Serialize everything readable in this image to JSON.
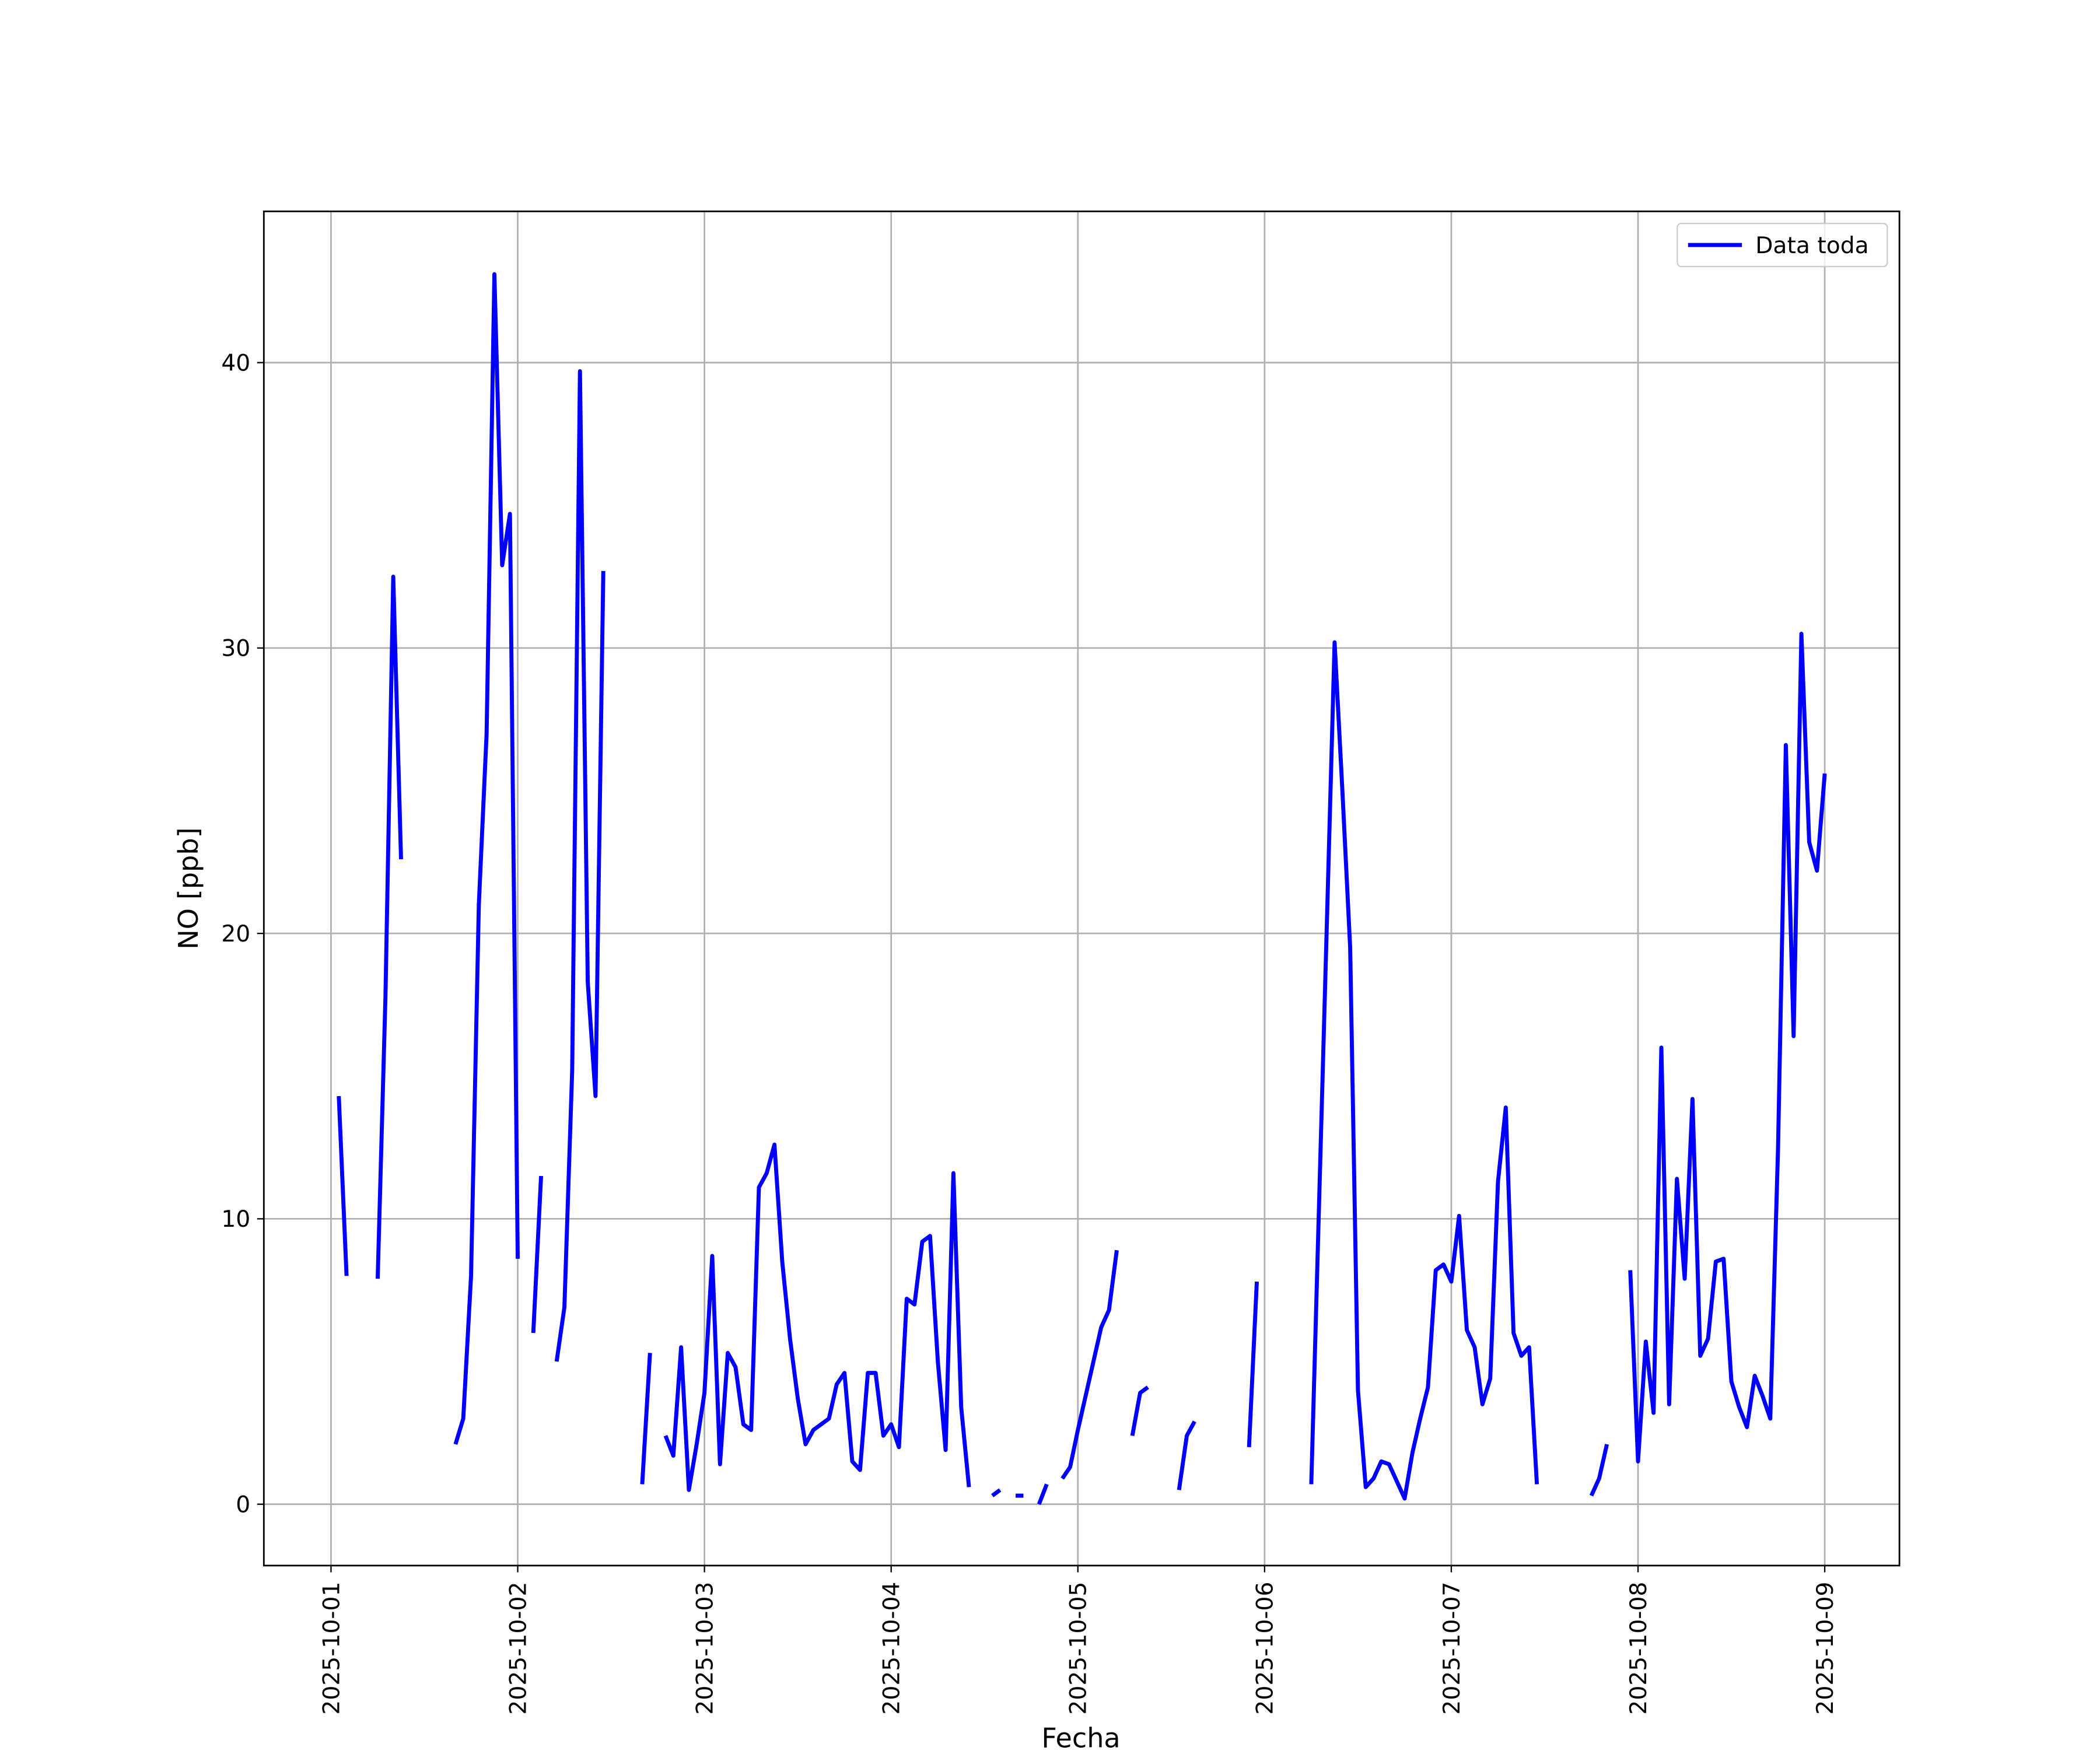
{
  "chart_data": {
    "type": "line",
    "xlabel": "Fecha",
    "ylabel": "NO [ppb]",
    "x": [
      "2025-10-01T00:00",
      "2025-10-01T01:00",
      "2025-10-01T02:00",
      "2025-10-01T03:00",
      "2025-10-01T04:00",
      "2025-10-01T05:00",
      "2025-10-01T06:00",
      "2025-10-01T07:00",
      "2025-10-01T08:00",
      "2025-10-01T09:00",
      "2025-10-01T10:00",
      "2025-10-01T11:00",
      "2025-10-01T12:00",
      "2025-10-01T13:00",
      "2025-10-01T14:00",
      "2025-10-01T15:00",
      "2025-10-01T16:00",
      "2025-10-01T17:00",
      "2025-10-01T18:00",
      "2025-10-01T19:00",
      "2025-10-01T20:00",
      "2025-10-01T21:00",
      "2025-10-01T22:00",
      "2025-10-01T23:00",
      "2025-10-02T00:00",
      "2025-10-02T01:00",
      "2025-10-02T02:00",
      "2025-10-02T03:00",
      "2025-10-02T04:00",
      "2025-10-02T05:00",
      "2025-10-02T06:00",
      "2025-10-02T07:00",
      "2025-10-02T08:00",
      "2025-10-02T09:00",
      "2025-10-02T10:00",
      "2025-10-02T11:00",
      "2025-10-02T12:00",
      "2025-10-02T13:00",
      "2025-10-02T14:00",
      "2025-10-02T15:00",
      "2025-10-02T16:00",
      "2025-10-02T17:00",
      "2025-10-02T18:00",
      "2025-10-02T19:00",
      "2025-10-02T20:00",
      "2025-10-02T21:00",
      "2025-10-02T22:00",
      "2025-10-02T23:00",
      "2025-10-03T00:00",
      "2025-10-03T01:00",
      "2025-10-03T02:00",
      "2025-10-03T03:00",
      "2025-10-03T04:00",
      "2025-10-03T05:00",
      "2025-10-03T06:00",
      "2025-10-03T07:00",
      "2025-10-03T08:00",
      "2025-10-03T09:00",
      "2025-10-03T10:00",
      "2025-10-03T11:00",
      "2025-10-03T12:00",
      "2025-10-03T13:00",
      "2025-10-03T14:00",
      "2025-10-03T15:00",
      "2025-10-03T16:00",
      "2025-10-03T17:00",
      "2025-10-03T18:00",
      "2025-10-03T19:00",
      "2025-10-03T20:00",
      "2025-10-03T21:00",
      "2025-10-03T22:00",
      "2025-10-03T23:00",
      "2025-10-04T00:00",
      "2025-10-04T01:00",
      "2025-10-04T02:00",
      "2025-10-04T03:00",
      "2025-10-04T04:00",
      "2025-10-04T05:00",
      "2025-10-04T06:00",
      "2025-10-04T07:00",
      "2025-10-04T08:00",
      "2025-10-04T09:00",
      "2025-10-04T10:00",
      "2025-10-04T11:00",
      "2025-10-04T12:00",
      "2025-10-04T13:00",
      "2025-10-04T14:00",
      "2025-10-04T15:00",
      "2025-10-04T16:00",
      "2025-10-04T17:00",
      "2025-10-04T18:00",
      "2025-10-04T19:00",
      "2025-10-04T20:00",
      "2025-10-04T21:00",
      "2025-10-04T22:00",
      "2025-10-04T23:00",
      "2025-10-05T00:00",
      "2025-10-05T01:00",
      "2025-10-05T02:00",
      "2025-10-05T03:00",
      "2025-10-05T04:00",
      "2025-10-05T05:00",
      "2025-10-05T06:00",
      "2025-10-05T07:00",
      "2025-10-05T08:00",
      "2025-10-05T09:00",
      "2025-10-05T10:00",
      "2025-10-05T11:00",
      "2025-10-05T12:00",
      "2025-10-05T13:00",
      "2025-10-05T14:00",
      "2025-10-05T15:00",
      "2025-10-05T16:00",
      "2025-10-05T17:00",
      "2025-10-05T18:00",
      "2025-10-05T19:00",
      "2025-10-05T20:00",
      "2025-10-05T21:00",
      "2025-10-05T22:00",
      "2025-10-05T23:00",
      "2025-10-06T00:00",
      "2025-10-06T01:00",
      "2025-10-06T02:00",
      "2025-10-06T03:00",
      "2025-10-06T04:00",
      "2025-10-06T05:00",
      "2025-10-06T06:00",
      "2025-10-06T07:00",
      "2025-10-06T08:00",
      "2025-10-06T09:00",
      "2025-10-06T10:00",
      "2025-10-06T11:00",
      "2025-10-06T12:00",
      "2025-10-06T13:00",
      "2025-10-06T14:00",
      "2025-10-06T15:00",
      "2025-10-06T16:00",
      "2025-10-06T17:00",
      "2025-10-06T18:00",
      "2025-10-06T19:00",
      "2025-10-06T20:00",
      "2025-10-06T21:00",
      "2025-10-06T22:00",
      "2025-10-06T23:00",
      "2025-10-07T00:00",
      "2025-10-07T01:00",
      "2025-10-07T02:00",
      "2025-10-07T03:00",
      "2025-10-07T04:00",
      "2025-10-07T05:00",
      "2025-10-07T06:00",
      "2025-10-07T07:00",
      "2025-10-07T08:00",
      "2025-10-07T09:00",
      "2025-10-07T10:00",
      "2025-10-07T11:00",
      "2025-10-07T12:00",
      "2025-10-07T13:00",
      "2025-10-07T14:00",
      "2025-10-07T15:00",
      "2025-10-07T16:00",
      "2025-10-07T17:00",
      "2025-10-07T18:00",
      "2025-10-07T19:00",
      "2025-10-07T20:00",
      "2025-10-07T21:00",
      "2025-10-07T22:00",
      "2025-10-07T23:00",
      "2025-10-08T00:00",
      "2025-10-08T01:00",
      "2025-10-08T02:00",
      "2025-10-08T03:00",
      "2025-10-08T04:00",
      "2025-10-08T05:00",
      "2025-10-08T06:00",
      "2025-10-08T07:00",
      "2025-10-08T08:00",
      "2025-10-08T09:00",
      "2025-10-08T10:00",
      "2025-10-08T11:00",
      "2025-10-08T12:00",
      "2025-10-08T13:00",
      "2025-10-08T14:00",
      "2025-10-08T15:00",
      "2025-10-08T16:00",
      "2025-10-08T17:00",
      "2025-10-08T18:00",
      "2025-10-08T19:00",
      "2025-10-08T20:00",
      "2025-10-08T21:00",
      "2025-10-08T22:00",
      "2025-10-08T23:00",
      "2025-10-09T00:00"
    ],
    "series": [
      {
        "name": "Data toda",
        "color": "#0000ff",
        "values": [
          null,
          14.3,
          8.0,
          null,
          null,
          null,
          7.9,
          17.8,
          32.5,
          22.6,
          null,
          null,
          null,
          null,
          null,
          null,
          2.1,
          3.0,
          8.0,
          21,
          27,
          43.1,
          32.9,
          34.7,
          8.6,
          null,
          6.0,
          11.5,
          null,
          5.0,
          6.9,
          15.2,
          39.7,
          18.3,
          14.3,
          32.7,
          null,
          null,
          null,
          null,
          0.7,
          5.3,
          null,
          2.4,
          1.7,
          5.5,
          0.5,
          2.1,
          3.9,
          8.7,
          1.4,
          5.3,
          4.8,
          2.8,
          2.6,
          11.1,
          11.6,
          12.6,
          8.5,
          5.8,
          3.7,
          2.1,
          2.6,
          2.8,
          3.0,
          4.2,
          4.6,
          1.5,
          1.2,
          4.6,
          4.6,
          2.4,
          2.8,
          2.0,
          7.2,
          7.0,
          9.2,
          9.4,
          5.0,
          1.9,
          11.6,
          3.4,
          0.6,
          null,
          null,
          0.3,
          0.5,
          null,
          0.3,
          0.3,
          null,
          0.0,
          0.7,
          null,
          0.9,
          1.3,
          2.6,
          3.8,
          5.0,
          6.2,
          6.8,
          8.9,
          null,
          2.4,
          3.9,
          4.1,
          null,
          null,
          null,
          0.5,
          2.4,
          2.9,
          null,
          null,
          null,
          null,
          null,
          null,
          2.0,
          7.8,
          null,
          null,
          null,
          null,
          null,
          null,
          0.7,
          10.5,
          20.3,
          30.2,
          25.0,
          19.5,
          4.0,
          0.6,
          0.9,
          1.5,
          1.4,
          0.8,
          0.2,
          1.8,
          3.0,
          4.1,
          8.2,
          8.4,
          7.8,
          10.1,
          6.1,
          5.5,
          3.5,
          4.4,
          11.3,
          13.9,
          6.0,
          5.2,
          5.5,
          0.7,
          null,
          null,
          null,
          null,
          null,
          null,
          0.3,
          0.9,
          2.1,
          null,
          null,
          8.2,
          1.5,
          5.7,
          3.2,
          16.0,
          3.5,
          11.4,
          7.9,
          14.2,
          5.2,
          5.8,
          8.5,
          8.6,
          4.3,
          3.4,
          2.7,
          4.5,
          3.8,
          3.0,
          12.5,
          26.6,
          16.4,
          30.5,
          23.2,
          22.2,
          25.6
        ]
      }
    ],
    "xlim": [
      "2025-09-30T15:22",
      "2025-10-09T09:36"
    ],
    "xticks": [
      "2025-10-01",
      "2025-10-02",
      "2025-10-03",
      "2025-10-04",
      "2025-10-05",
      "2025-10-06",
      "2025-10-07",
      "2025-10-08",
      "2025-10-09"
    ],
    "ylim": [
      -2.15,
      45.3
    ],
    "yticks": [
      0,
      10,
      20,
      30,
      40
    ],
    "grid": true,
    "legend": "upper right"
  }
}
